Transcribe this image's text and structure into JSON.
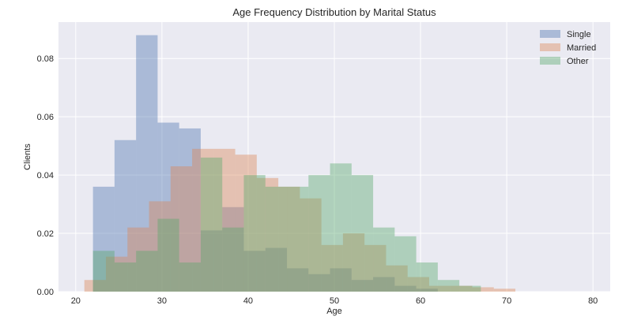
{
  "chart_data": {
    "type": "histogram",
    "title": "Age Frequency Distribution by Marital Status",
    "xlabel": "Age",
    "ylabel": "Clients",
    "xlim": [
      18,
      82
    ],
    "ylim": [
      0,
      0.0925
    ],
    "xticks": [
      20,
      30,
      40,
      50,
      60,
      70,
      80
    ],
    "yticks": [
      0.0,
      0.02,
      0.04,
      0.06,
      0.08
    ],
    "ytick_labels": [
      "0.00",
      "0.02",
      "0.04",
      "0.06",
      "0.08"
    ],
    "grid": true,
    "legend_position": "top-right",
    "series": [
      {
        "name": "Single",
        "color": "#4c72b0",
        "bins": [
          [
            22,
            24.5,
            0.036
          ],
          [
            24.5,
            27,
            0.052
          ],
          [
            27,
            29.5,
            0.088
          ],
          [
            29.5,
            32,
            0.058
          ],
          [
            32,
            34.5,
            0.056
          ],
          [
            34.5,
            37,
            0.021
          ],
          [
            37,
            39.5,
            0.029
          ],
          [
            39.5,
            42,
            0.014
          ],
          [
            42,
            44.5,
            0.015
          ],
          [
            44.5,
            47,
            0.008
          ],
          [
            47,
            49.5,
            0.006
          ],
          [
            49.5,
            52,
            0.008
          ],
          [
            52,
            54.5,
            0.004
          ],
          [
            54.5,
            57,
            0.005
          ],
          [
            57,
            59.5,
            0.002
          ],
          [
            59.5,
            62,
            0.001
          ]
        ]
      },
      {
        "name": "Married",
        "color": "#dd8452",
        "bins": [
          [
            21,
            23.5,
            0.004
          ],
          [
            23.5,
            26,
            0.012
          ],
          [
            26,
            28.5,
            0.022
          ],
          [
            28.5,
            31,
            0.031
          ],
          [
            31,
            33.5,
            0.043
          ],
          [
            33.5,
            36,
            0.049
          ],
          [
            36,
            38.5,
            0.049
          ],
          [
            38.5,
            41,
            0.047
          ],
          [
            41,
            43.5,
            0.039
          ],
          [
            43.5,
            46,
            0.036
          ],
          [
            46,
            48.5,
            0.032
          ],
          [
            48.5,
            51,
            0.016
          ],
          [
            51,
            53.5,
            0.02
          ],
          [
            53.5,
            56,
            0.016
          ],
          [
            56,
            58.5,
            0.009
          ],
          [
            58.5,
            61,
            0.005
          ],
          [
            61,
            63.5,
            0.002
          ],
          [
            63.5,
            66,
            0.002
          ],
          [
            66,
            68.5,
            0.0015
          ],
          [
            68.5,
            71,
            0.001
          ]
        ]
      },
      {
        "name": "Other",
        "color": "#55a868",
        "bins": [
          [
            22,
            24.5,
            0.014
          ],
          [
            24.5,
            27,
            0.01
          ],
          [
            27,
            29.5,
            0.014
          ],
          [
            29.5,
            32,
            0.025
          ],
          [
            32,
            34.5,
            0.01
          ],
          [
            34.5,
            37,
            0.046
          ],
          [
            37,
            39.5,
            0.022
          ],
          [
            39.5,
            42,
            0.04
          ],
          [
            42,
            44.5,
            0.036
          ],
          [
            44.5,
            47,
            0.036
          ],
          [
            47,
            49.5,
            0.04
          ],
          [
            49.5,
            52,
            0.044
          ],
          [
            52,
            54.5,
            0.04
          ],
          [
            54.5,
            57,
            0.022
          ],
          [
            57,
            59.5,
            0.019
          ],
          [
            59.5,
            62,
            0.01
          ],
          [
            62,
            64.5,
            0.004
          ],
          [
            64.5,
            67,
            0.002
          ]
        ]
      }
    ]
  }
}
